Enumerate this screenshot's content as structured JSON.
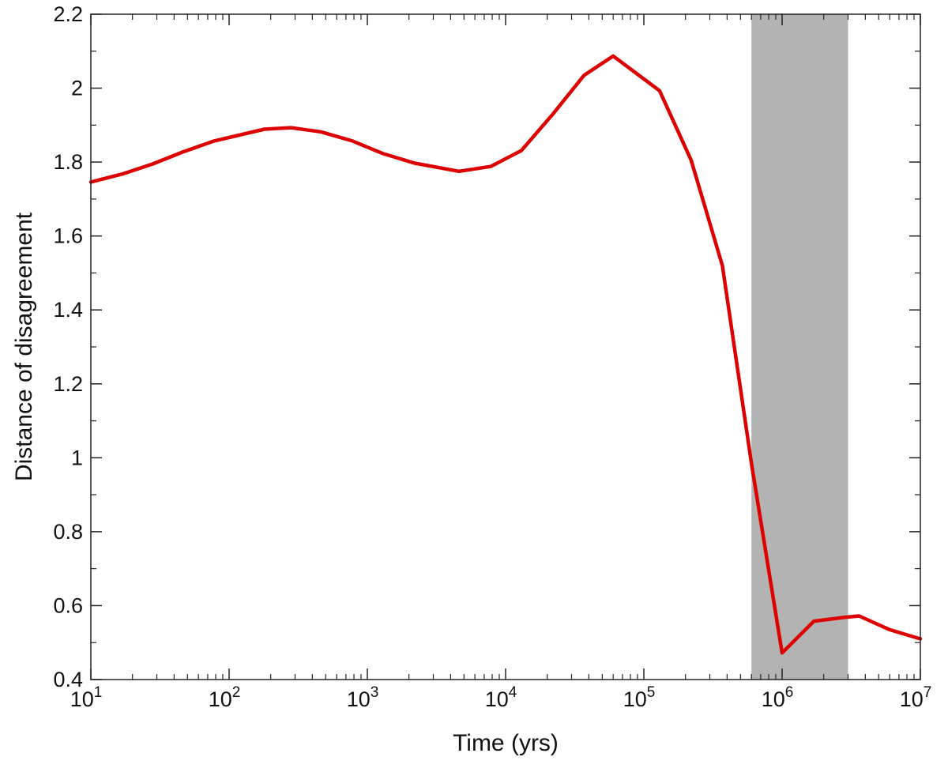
{
  "chart_data": {
    "type": "line",
    "title": "",
    "xlabel": "Time (yrs)",
    "ylabel": "Distance of disagreement",
    "x_scale": "log",
    "xlim": [
      10,
      10000000
    ],
    "ylim": [
      0.4,
      2.2
    ],
    "grid": false,
    "x_ticks": [
      {
        "value": 10,
        "base": "10",
        "exp": "1"
      },
      {
        "value": 100,
        "base": "10",
        "exp": "2"
      },
      {
        "value": 1000,
        "base": "10",
        "exp": "3"
      },
      {
        "value": 10000,
        "base": "10",
        "exp": "4"
      },
      {
        "value": 100000,
        "base": "10",
        "exp": "5"
      },
      {
        "value": 1000000,
        "base": "10",
        "exp": "6"
      },
      {
        "value": 10000000,
        "base": "10",
        "exp": "7"
      }
    ],
    "y_ticks": [
      {
        "value": 0.4,
        "label": "0.4"
      },
      {
        "value": 0.6,
        "label": "0.6"
      },
      {
        "value": 0.8,
        "label": "0.8"
      },
      {
        "value": 1.0,
        "label": "1"
      },
      {
        "value": 1.2,
        "label": "1.2"
      },
      {
        "value": 1.4,
        "label": "1.4"
      },
      {
        "value": 1.6,
        "label": "1.6"
      },
      {
        "value": 1.8,
        "label": "1.8"
      },
      {
        "value": 2.0,
        "label": "2"
      },
      {
        "value": 2.2,
        "label": "2.2"
      }
    ],
    "shaded_region": {
      "x_start": 600000,
      "x_end": 3000000,
      "color": "#b3b3b3"
    },
    "series": [
      {
        "color": "#dd0000",
        "x": [
          10,
          17,
          28,
          46,
          78,
          180,
          280,
          460,
          780,
          1300,
          2200,
          4600,
          7800,
          13000,
          22000,
          37000,
          60000,
          130000,
          220000,
          370000,
          600000,
          1000000,
          1700000,
          2800000,
          3600000,
          6000000,
          10000000
        ],
        "y": [
          1.746,
          1.768,
          1.795,
          1.827,
          1.857,
          1.889,
          1.893,
          1.882,
          1.857,
          1.823,
          1.797,
          1.775,
          1.788,
          1.831,
          1.93,
          2.035,
          2.087,
          1.993,
          1.805,
          1.52,
          0.985,
          0.472,
          0.558,
          0.568,
          0.572,
          0.535,
          0.51
        ]
      }
    ]
  }
}
